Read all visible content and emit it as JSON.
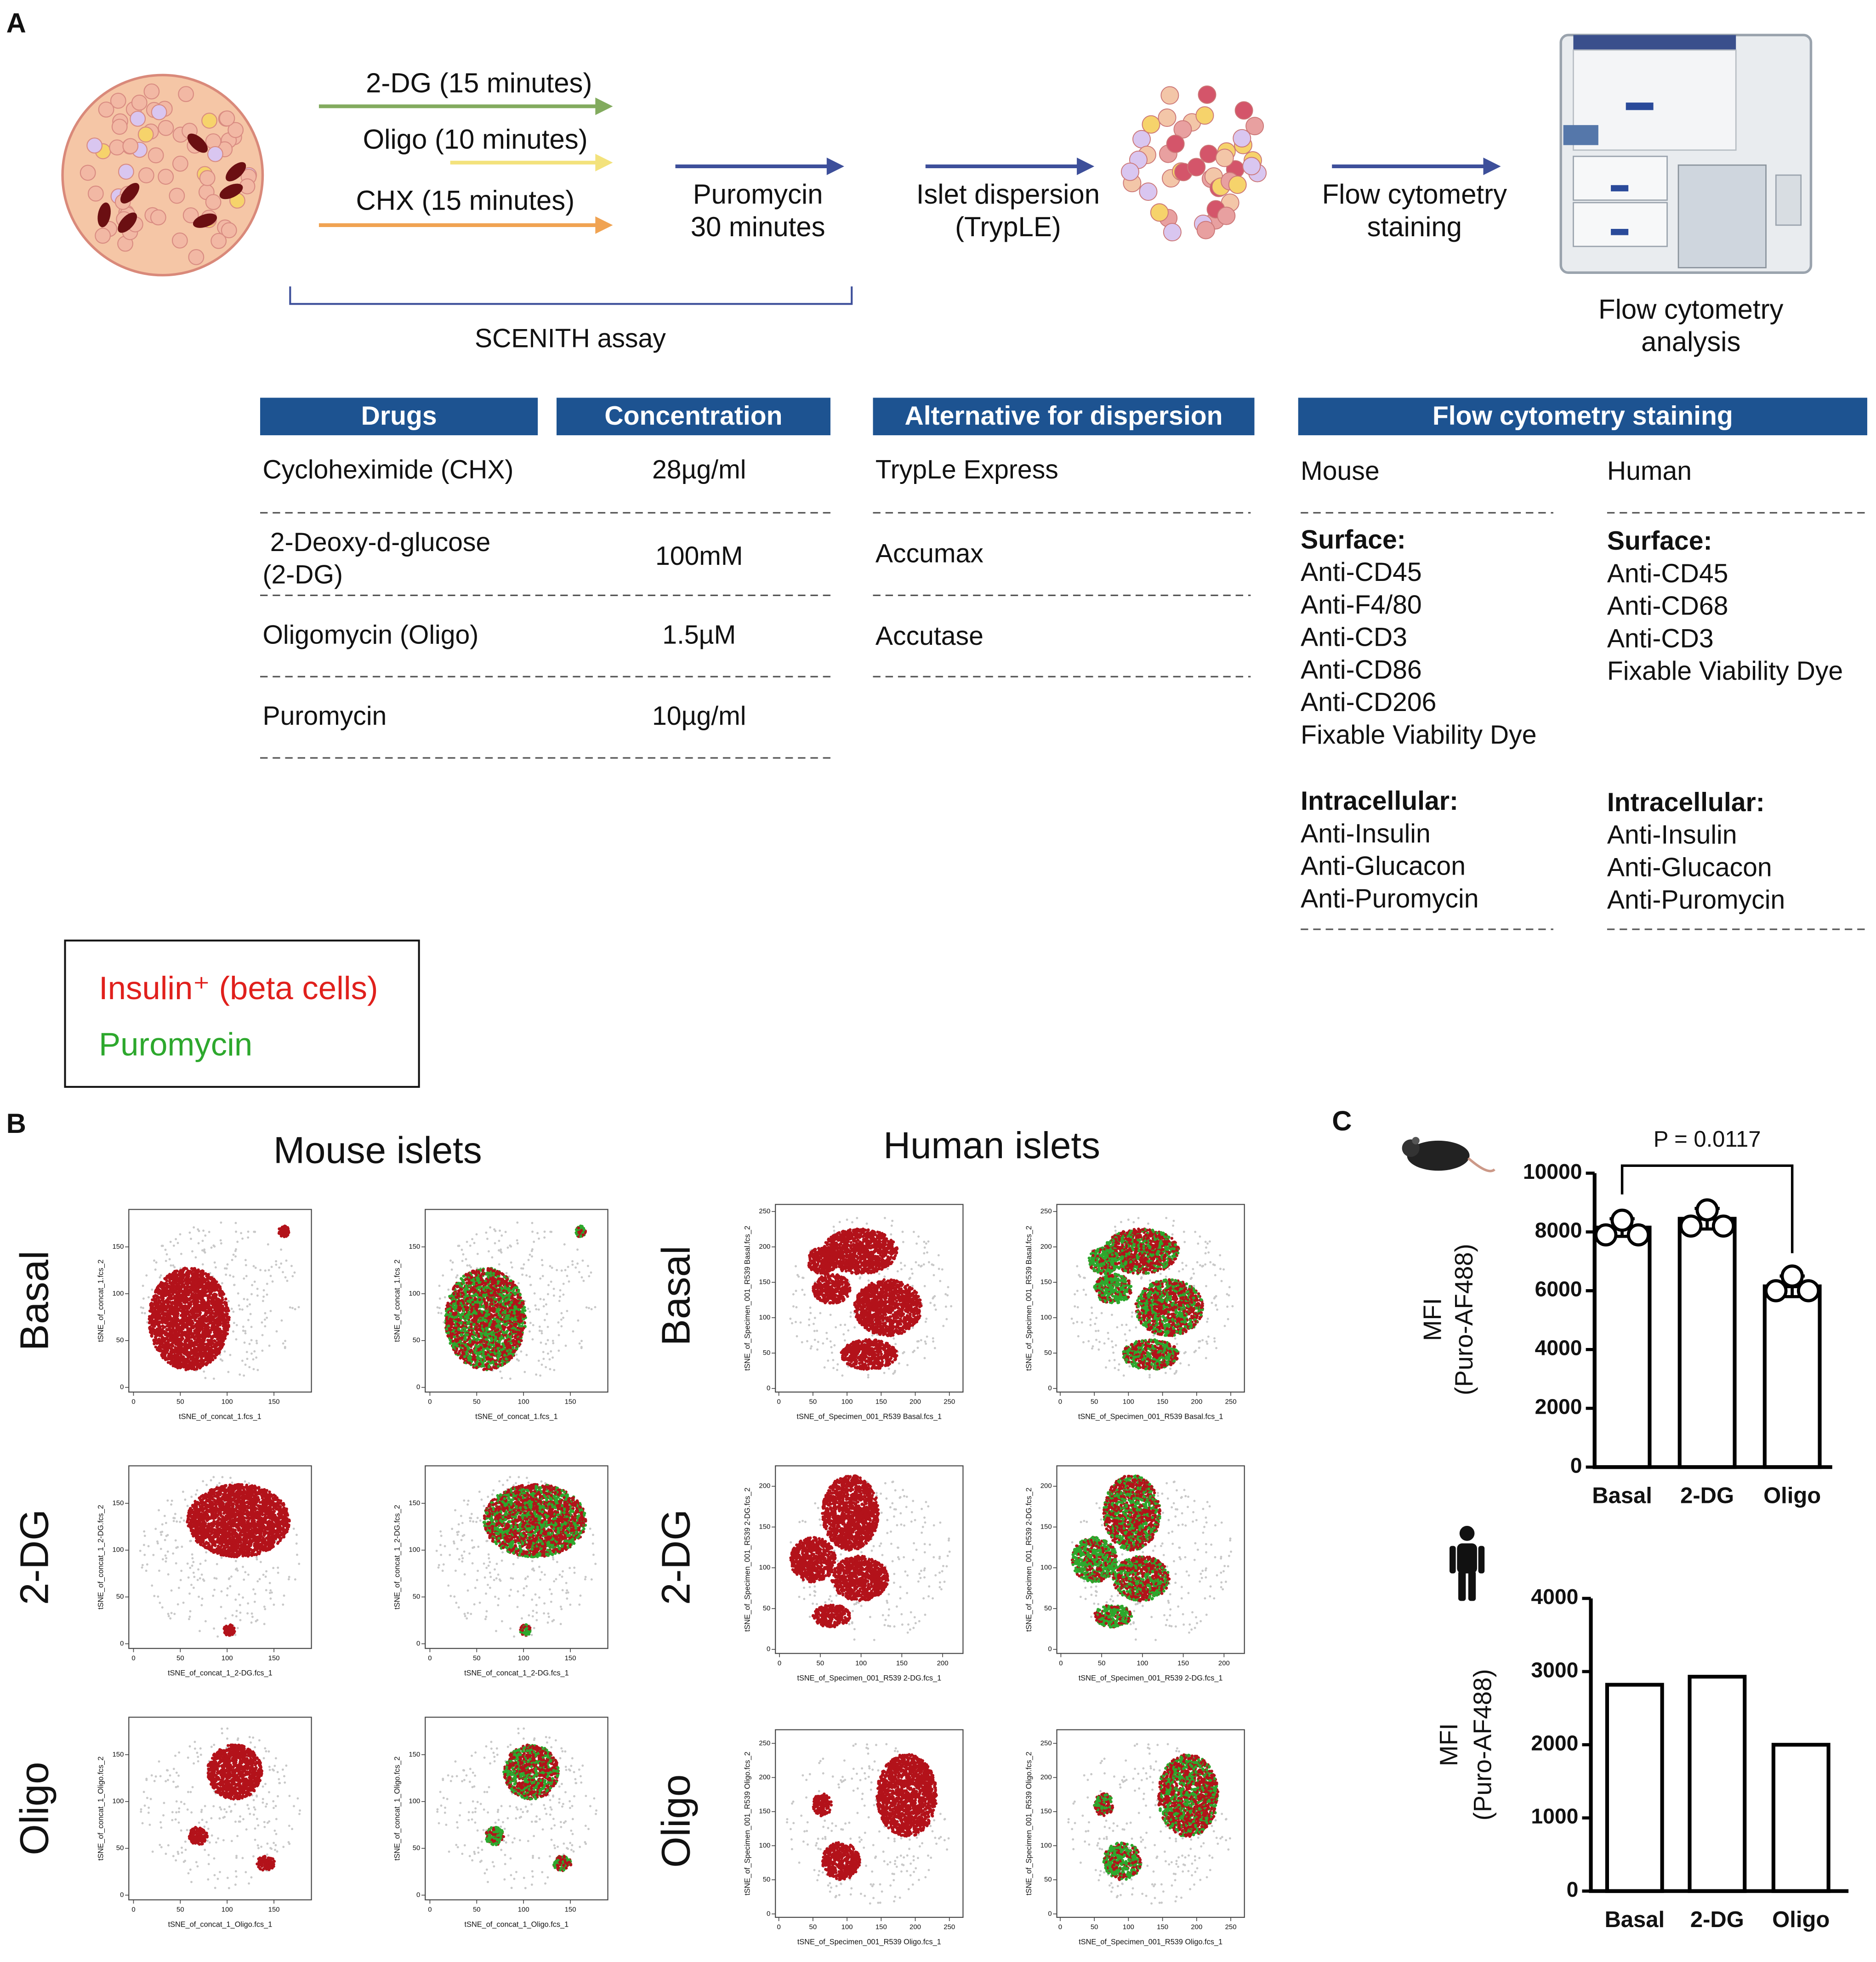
{
  "panel_labels": [
    "A",
    "B",
    "C"
  ],
  "protocol": {
    "treatments": [
      {
        "label": "2-DG (15 minutes)",
        "color": "#82ab5e"
      },
      {
        "label": "Oligo (10 minutes)",
        "color": "#f3e27c"
      },
      {
        "label": "CHX (15 minutes)",
        "color": "#f0a352"
      }
    ],
    "steps": [
      [
        "Puromycin",
        "30 minutes"
      ],
      [
        "Islet dispersion",
        "(TrypLE)"
      ],
      [
        "Flow cytometry",
        "staining"
      ]
    ],
    "assay": "SCENITH assay",
    "analysis": [
      "Flow cytometry",
      "analysis"
    ]
  },
  "tables": {
    "drugs": {
      "headers": [
        "Drugs",
        "Concentration"
      ],
      "rows": [
        {
          "name": [
            "Cycloheximide (CHX)"
          ],
          "concentration": "28µg/ml"
        },
        {
          "name": [
            "2-Deoxy-d-glucose",
            "(2-DG)"
          ],
          "concentration": "100mM"
        },
        {
          "name": [
            "Oligomycin (Oligo)"
          ],
          "concentration": "1.5µM"
        },
        {
          "name": [
            "Puromycin"
          ],
          "concentration": "10µg/ml"
        }
      ]
    },
    "dispersion": {
      "header": "Alternative for dispersion",
      "rows": [
        "TrypLe Express",
        "Accumax",
        "Accutase"
      ]
    },
    "staining": {
      "header": "Flow cytometry staining",
      "columns": [
        {
          "species": "Mouse",
          "groups": [
            {
              "title": "Surface:",
              "items": [
                "Anti-CD45",
                "Anti-F4/80",
                "Anti-CD3",
                "Anti-CD86",
                "Anti-CD206",
                "Fixable Viability Dye"
              ]
            },
            {
              "title": "Intracellular:",
              "items": [
                "Anti-Insulin",
                "Anti-Glucacon",
                "Anti-Puromycin"
              ]
            }
          ]
        },
        {
          "species": "Human",
          "groups": [
            {
              "title": "Surface:",
              "items": [
                "Anti-CD45",
                "Anti-CD68",
                "Anti-CD3",
                "Fixable Viability Dye"
              ]
            },
            {
              "title": "Intracellular:",
              "items": [
                "Anti-Insulin",
                "Anti-Glucacon",
                "Anti-Puromycin"
              ]
            }
          ]
        }
      ]
    }
  },
  "legend": {
    "items": [
      {
        "label": "Insulin⁺ (beta cells)",
        "color": "#e0201c"
      },
      {
        "label": "Puromycin",
        "color": "#2da82d"
      }
    ]
  },
  "tsne": {
    "groups": [
      {
        "title": "Mouse islets",
        "rows": [
          {
            "label": "Basal",
            "xlim": [
              -5,
              190
            ],
            "ylim": [
              -5,
              190
            ],
            "xticks": [
              0,
              50,
              100,
              150
            ],
            "yticks": [
              0,
              50,
              100,
              150
            ],
            "plots": [
              {
                "x_label": "tSNE_of_concat_1.fcs_1",
                "y_label": "tSNE_of_concat_1.fcs_2"
              },
              {
                "x_label": "tSNE_of_concat_1.fcs_1",
                "y_label": "tSNE_of_concat_1.fcs_2"
              }
            ]
          },
          {
            "label": "2-DG",
            "xlim": [
              -5,
              190
            ],
            "ylim": [
              -5,
              190
            ],
            "xticks": [
              0,
              50,
              100,
              150
            ],
            "yticks": [
              0,
              50,
              100,
              150
            ],
            "plots": [
              {
                "x_label": "tSNE_of_concat_1_2-DG.fcs_1",
                "y_label": "tSNE_of_concat_1_2-DG.fcs_2"
              },
              {
                "x_label": "tSNE_of_concat_1_2-DG.fcs_1",
                "y_label": "tSNE_of_concat_1_2-DG.fcs_2"
              }
            ]
          },
          {
            "label": "Oligo",
            "xlim": [
              -5,
              190
            ],
            "ylim": [
              -5,
              190
            ],
            "xticks": [
              0,
              50,
              100,
              150
            ],
            "yticks": [
              0,
              50,
              100,
              150
            ],
            "plots": [
              {
                "x_label": "tSNE_of_concat_1_Oligo.fcs_1",
                "y_label": "tSNE_of_concat_1_Oligo.fcs_2"
              },
              {
                "x_label": "tSNE_of_concat_1_Oligo.fcs_1",
                "y_label": "tSNE_of_concat_1_Oligo.fcs_2"
              }
            ]
          }
        ]
      },
      {
        "title": "Human islets",
        "rows": [
          {
            "label": "Basal",
            "xlim": [
              -5,
              270
            ],
            "ylim": [
              -5,
              260
            ],
            "xticks": [
              0,
              50,
              100,
              150,
              200,
              250
            ],
            "yticks": [
              0,
              50,
              100,
              150,
              200,
              250
            ],
            "plots": [
              {
                "x_label": "tSNE_of_Specimen_001_R539 Basal.fcs_1",
                "y_label": "tSNE_of_Specimen_001_R539 Basal.fcs_2"
              },
              {
                "x_label": "tSNE_of_Specimen_001_R539 Basal.fcs_1",
                "y_label": "tSNE_of_Specimen_001_R539 Basal.fcs_2"
              }
            ]
          },
          {
            "label": "2-DG",
            "xlim": [
              -5,
              225
            ],
            "ylim": [
              -5,
              225
            ],
            "xticks": [
              0,
              50,
              100,
              150,
              200
            ],
            "yticks": [
              0,
              50,
              100,
              150,
              200
            ],
            "plots": [
              {
                "x_label": "tSNE_of_Specimen_001_R539 2-DG.fcs_1",
                "y_label": "tSNE_of_Specimen_001_R539 2-DG.fcs_2"
              },
              {
                "x_label": "tSNE_of_Specimen_001_R539 2-DG.fcs_1",
                "y_label": "tSNE_of_Specimen_001_R539 2-DG.fcs_2"
              }
            ]
          },
          {
            "label": "Oligo",
            "xlim": [
              -5,
              270
            ],
            "ylim": [
              -5,
              270
            ],
            "xticks": [
              0,
              50,
              100,
              150,
              200,
              250
            ],
            "yticks": [
              0,
              50,
              100,
              150,
              200,
              250
            ],
            "plots": [
              {
                "x_label": "tSNE_of_Specimen_001_R539 Oligo.fcs_1",
                "y_label": "tSNE_of_Specimen_001_R539 Oligo.fcs_2"
              },
              {
                "x_label": "tSNE_of_Specimen_001_R539 Oligo.fcs_1",
                "y_label": "tSNE_of_Specimen_001_R539 Oligo.fcs_2"
              }
            ]
          }
        ]
      }
    ]
  },
  "chart_data": [
    {
      "type": "bar",
      "categories": [
        "Basal",
        "2-DG",
        "Oligo"
      ],
      "values": [
        8150,
        8450,
        6150
      ],
      "errors": [
        300,
        350,
        350
      ],
      "points": [
        [
          8400,
          7900,
          7900
        ],
        [
          8750,
          8200,
          8200
        ],
        [
          6500,
          6000,
          6000
        ]
      ],
      "ylabel": [
        "MFI",
        "(Puro-AF488)"
      ],
      "annotation": "P = 0.0117",
      "ylim": [
        0,
        10000
      ],
      "yticks": [
        0,
        2000,
        4000,
        6000,
        8000,
        10000
      ],
      "color": "#ffffff",
      "edge_color": "#000000"
    },
    {
      "type": "bar",
      "categories": [
        "Basal",
        "2-DG",
        "Oligo"
      ],
      "values": [
        2820,
        2930,
        2000
      ],
      "ylabel": [
        "MFI",
        "(Puro-AF488)"
      ],
      "ylim": [
        0,
        4000
      ],
      "yticks": [
        0,
        1000,
        2000,
        3000,
        4000
      ],
      "color": "#ffffff",
      "edge_color": "#000000"
    }
  ]
}
